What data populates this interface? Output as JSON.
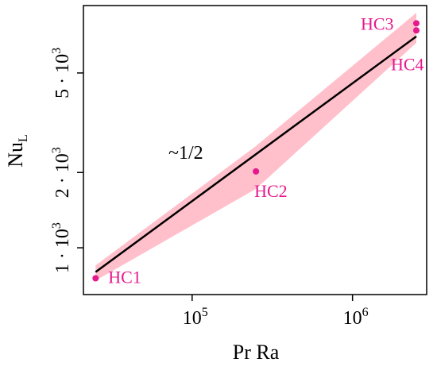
{
  "chart_data": {
    "type": "scatter",
    "xlabel": "Pr Ra",
    "ylabel": {
      "base": "Nu",
      "sub": "L"
    },
    "xscale": "log",
    "yscale": "log",
    "xlim": [
      21000,
      2900000
    ],
    "ylim": [
      650,
      9300
    ],
    "grid": false,
    "legend": "none",
    "x_ticks": [
      {
        "value": 100000,
        "base": "10",
        "exp": "5"
      },
      {
        "value": 1000000,
        "base": "10",
        "exp": "6"
      }
    ],
    "y_ticks": [
      {
        "value": 1000,
        "label": "1 · 10",
        "exp": "3"
      },
      {
        "value": 2000,
        "label": "2 · 10",
        "exp": "3"
      },
      {
        "value": 5000,
        "label": "5 · 10",
        "exp": "3"
      }
    ],
    "points": [
      {
        "label": "HC1",
        "x": 25000,
        "y": 755
      },
      {
        "label": "HC2",
        "x": 250000,
        "y": 2020
      },
      {
        "label": "HC3",
        "x": 2500000,
        "y": 7900
      },
      {
        "label": "HC4",
        "x": 2500000,
        "y": 7400
      }
    ],
    "fit_line": {
      "x": [
        25000,
        2500000
      ],
      "y": [
        800,
        7000
      ]
    },
    "slope_label": "~1/2",
    "band": {
      "upper": [
        {
          "x": 25000,
          "y": 850
        },
        {
          "x": 250000,
          "y": 2550
        },
        {
          "x": 2500000,
          "y": 8700
        }
      ],
      "lower": [
        {
          "x": 25000,
          "y": 740
        },
        {
          "x": 250000,
          "y": 1720
        },
        {
          "x": 2500000,
          "y": 6600
        }
      ]
    },
    "colors": {
      "points": "#e6198c",
      "band": "#ffc0cb",
      "line": "#000000"
    }
  }
}
